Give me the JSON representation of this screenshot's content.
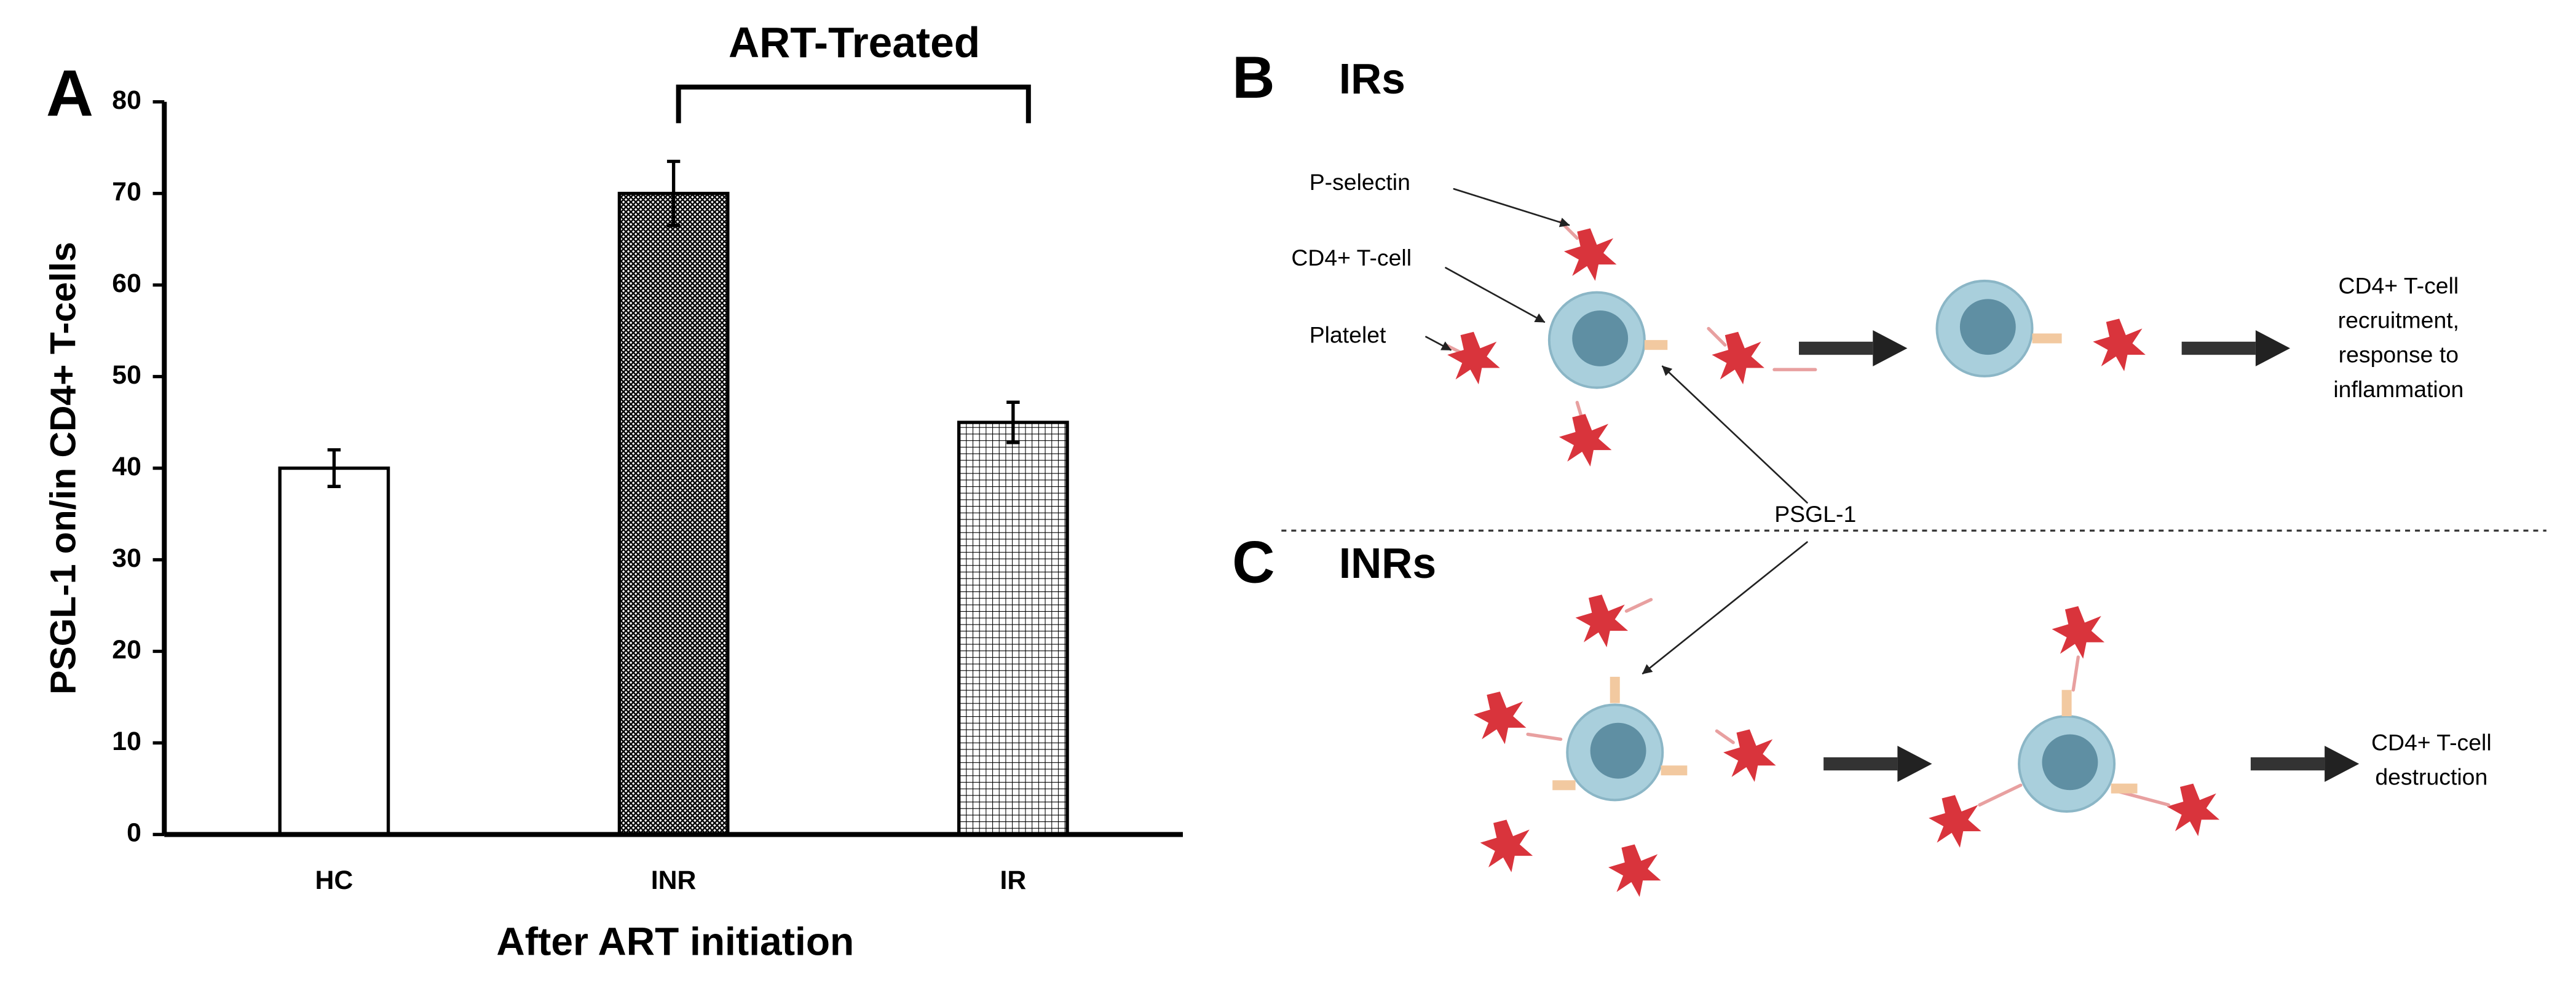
{
  "chart_data": {
    "type": "bar",
    "panel_label": "A",
    "annotation": "ART-Treated",
    "ylabel": "PSGL-1 on/in CD4+ T-cells",
    "xlabel": "After ART initiation",
    "categories": [
      "HC",
      "INR",
      "IR"
    ],
    "values": [
      40,
      70,
      45
    ],
    "errors": [
      2,
      3.5,
      2.2
    ],
    "ylim": [
      0,
      80
    ],
    "yticks": [
      0,
      10,
      20,
      30,
      40,
      50,
      60,
      70,
      80
    ],
    "grid": false,
    "color": "#000000"
  },
  "diagram": {
    "panel_b": {
      "letter": "B",
      "title": "IRs"
    },
    "panel_c": {
      "letter": "C",
      "title": "INRs"
    },
    "labels": {
      "p_selectin": "P-selectin",
      "t_cell": "CD4+ T-cell",
      "platelet": "Platelet",
      "psgl1": "PSGL-1"
    },
    "outcome_b": [
      "CD4+ T-cell",
      "recruitment,",
      "response to",
      "inflammation"
    ],
    "outcome_c": [
      "CD4+ T-cell",
      "destruction"
    ]
  }
}
